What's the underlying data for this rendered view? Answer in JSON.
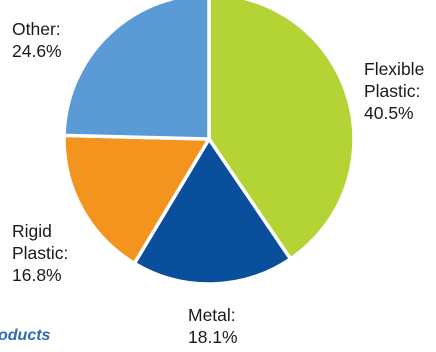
{
  "chart_data": {
    "type": "pie",
    "title": "",
    "slices": [
      {
        "name_lines": [
          "Flexible",
          "Plastic:"
        ],
        "value_label": "40.5%",
        "value": 40.5,
        "color": "#b4d335"
      },
      {
        "name_lines": [
          "Metal:"
        ],
        "value_label": "18.1%",
        "value": 18.1,
        "color": "#0a4f9c"
      },
      {
        "name_lines": [
          "Rigid",
          "Plastic:"
        ],
        "value_label": "16.8%",
        "value": 16.8,
        "color": "#f3941e"
      },
      {
        "name_lines": [
          "Other:"
        ],
        "value_label": "24.6%",
        "value": 24.6,
        "color": "#5b9bd5"
      }
    ],
    "start_angle": "12 o'clock",
    "direction": "clockwise",
    "legend": "none"
  },
  "caption": "oducts"
}
